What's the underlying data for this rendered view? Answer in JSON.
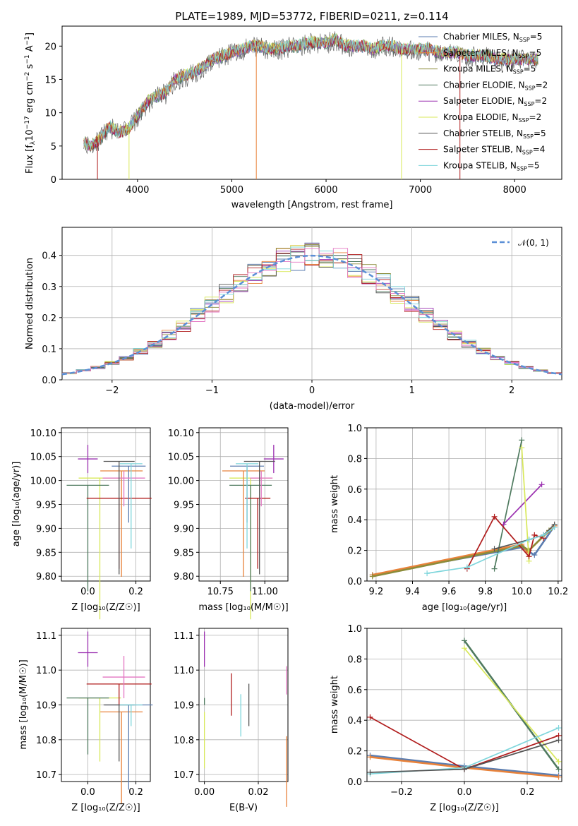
{
  "spectrum": {
    "title": "PLATE=1989, MJD=53772, FIBERID=0211, z=0.114",
    "xlabel": "wavelength [Angstrom, rest frame]",
    "ylabel_base": "Flux [f",
    "ylabel_unit_a": "10",
    "ylabel_exp_a": "−17",
    "ylabel_unit_b": " erg cm",
    "ylabel_exp_b": "−2",
    "ylabel_unit_c": " s",
    "ylabel_exp_c": "−1",
    "ylabel_unit_d": " A",
    "ylabel_exp_d": "−1",
    "ylabel_end": "]",
    "ylabel_sub": "λ",
    "xticks": [
      "4000",
      "5000",
      "6000",
      "7000",
      "8000"
    ],
    "yticks": [
      "0",
      "5",
      "10",
      "15",
      "20"
    ],
    "legend": [
      {
        "name": "Chabrier MILES",
        "n": "5",
        "color": "#5b7db0"
      },
      {
        "name": "Salpeter MILES",
        "n": "5",
        "color": "#e8823a"
      },
      {
        "name": "Kroupa MILES",
        "n": "5",
        "color": "#8c8c3a"
      },
      {
        "name": "Chabrier ELODIE",
        "n": "2",
        "color": "#4f7a5f"
      },
      {
        "name": "Salpeter ELODIE",
        "n": "2",
        "color": "#9b30b0"
      },
      {
        "name": "Kroupa ELODIE",
        "n": "2",
        "color": "#d8e85a"
      },
      {
        "name": "Chabrier STELIB",
        "n": "5",
        "color": "#555555"
      },
      {
        "name": "Salpeter STELIB",
        "n": "4",
        "color": "#b01c1c"
      },
      {
        "name": "Kroupa STELIB",
        "n": "5",
        "color": "#7fd6dc"
      }
    ],
    "nssp_label": "N",
    "nssp_sub": "SSP"
  },
  "residuals": {
    "xlabel": "(data-model)/error",
    "ylabel": "Normed distribution",
    "xticks": [
      "−2",
      "−1",
      "0",
      "1",
      "2"
    ],
    "yticks": [
      "0.0",
      "0.1",
      "0.2",
      "0.3",
      "0.4"
    ],
    "legend": "𝒩(0, 1)"
  },
  "age_z": {
    "ylabel": "age  [log₁₀(age/yr)]",
    "xlabel": "Z [log₁₀(Z/Z☉)]",
    "xticks": [
      "0.0",
      "0.2"
    ],
    "yticks": [
      "9.80",
      "9.85",
      "9.90",
      "9.95",
      "10.00",
      "10.05",
      "10.10"
    ]
  },
  "age_mass": {
    "xlabel": "mass [log₁₀(M/M☉)]",
    "xticks": [
      "10.75",
      "11.00"
    ],
    "yticks": [
      "9.80",
      "9.85",
      "9.90",
      "9.95",
      "10.00",
      "10.05",
      "10.10"
    ]
  },
  "mw_age": {
    "ylabel": "mass weight",
    "xlabel": "age  [log₁₀(age/yr)]",
    "xticks": [
      "9.2",
      "9.4",
      "9.6",
      "9.8",
      "10.0",
      "10.2"
    ],
    "yticks": [
      "0.0",
      "0.2",
      "0.4",
      "0.6",
      "0.8",
      "1.0"
    ]
  },
  "mass_z": {
    "ylabel": "mass [log₁₀(M/M☉)]",
    "xlabel": "Z [log₁₀(Z/Z☉)]",
    "xticks": [
      "0.0",
      "0.2"
    ],
    "yticks": [
      "10.7",
      "10.8",
      "10.9",
      "11.0",
      "11.1"
    ]
  },
  "mass_ebv": {
    "xlabel": "E(B-V)",
    "xticks": [
      "0.00",
      "0.02"
    ],
    "yticks": [
      "10.7",
      "10.8",
      "10.9",
      "11.0",
      "11.1"
    ]
  },
  "mw_z": {
    "ylabel": "mass weight",
    "xlabel": "Z [log₁₀(Z/Z☉)]",
    "xticks": [
      "−0.2",
      "0.0",
      "0.2"
    ],
    "yticks": [
      "0.0",
      "0.2",
      "0.4",
      "0.6",
      "0.8",
      "1.0"
    ]
  },
  "chart_data": [
    {
      "type": "line",
      "title": "PLATE=1989, MJD=53772, FIBERID=0211, z=0.114",
      "xlabel": "wavelength [Angstrom, rest frame]",
      "ylabel": "Flux [fλ 10^-17 erg cm^-2 s^-1 A^-1]",
      "xlim": [
        3200,
        8500
      ],
      "ylim": [
        0,
        23
      ],
      "envelope_x": [
        3430,
        3500,
        3600,
        3700,
        3800,
        3900,
        4000,
        4100,
        4200,
        4300,
        4400,
        4500,
        4600,
        4700,
        4800,
        4900,
        5000,
        5100,
        5200,
        5300,
        5400,
        5500,
        5600,
        5700,
        5800,
        5900,
        6000,
        6100,
        6200,
        6300,
        6400,
        6500,
        6600,
        6700,
        6800,
        6900,
        7000,
        7100,
        7200,
        7300,
        7400,
        7500,
        7600,
        7700,
        7800,
        7900,
        8000,
        8100,
        8250
      ],
      "envelope_y": [
        5.5,
        5.0,
        6.0,
        8.0,
        7.0,
        7.5,
        9.5,
        11.5,
        12.5,
        13.0,
        15.0,
        15.5,
        16.0,
        17.0,
        18.0,
        18.5,
        19.0,
        19.5,
        20.0,
        20.0,
        19.5,
        19.5,
        20.0,
        20.0,
        20.5,
        20.5,
        20.5,
        21.0,
        20.0,
        20.0,
        20.0,
        19.5,
        20.0,
        20.0,
        19.5,
        19.5,
        19.5,
        19.5,
        19.0,
        19.0,
        19.0,
        18.5,
        18.5,
        18.5,
        18.0,
        18.0,
        18.0,
        18.0,
        18.0
      ],
      "series": [
        {
          "name": "Chabrier MILES, N_SSP=5"
        },
        {
          "name": "Salpeter MILES, N_SSP=5"
        },
        {
          "name": "Kroupa MILES, N_SSP=5"
        },
        {
          "name": "Chabrier ELODIE, N_SSP=2"
        },
        {
          "name": "Salpeter ELODIE, N_SSP=2"
        },
        {
          "name": "Kroupa ELODIE, N_SSP=2"
        },
        {
          "name": "Chabrier STELIB, N_SSP=5"
        },
        {
          "name": "Salpeter STELIB, N_SSP=4"
        },
        {
          "name": "Kroupa STELIB, N_SSP=5"
        }
      ]
    },
    {
      "type": "area",
      "xlabel": "(data-model)/error",
      "ylabel": "Normed distribution",
      "xlim": [
        -2.5,
        2.5
      ],
      "ylim": [
        0,
        0.49
      ],
      "bins": 35,
      "reference_curve": "N(0,1)",
      "grid": true,
      "legend": "top-right"
    },
    {
      "type": "scatter",
      "panel": "age vs Z",
      "xlim": [
        -0.11,
        0.26
      ],
      "ylim": [
        9.79,
        10.11
      ],
      "points": [
        {
          "x": 0.0,
          "y": 10.045,
          "color": "#9b30b0"
        },
        {
          "x": 0.05,
          "y": 10.005,
          "color": "#d8e85a"
        },
        {
          "x": 0.0,
          "y": 9.99,
          "color": "#4f7a5f"
        },
        {
          "x": 0.14,
          "y": 10.02,
          "color": "#e8823a"
        },
        {
          "x": 0.13,
          "y": 9.963,
          "color": "#b01c1c"
        },
        {
          "x": 0.17,
          "y": 10.03,
          "color": "#5b7db0"
        },
        {
          "x": 0.15,
          "y": 10.005,
          "color": "#e377c2"
        },
        {
          "x": 0.13,
          "y": 10.04,
          "color": "#555555"
        },
        {
          "x": 0.18,
          "y": 10.035,
          "color": "#7fd6dc"
        }
      ]
    },
    {
      "type": "scatter",
      "panel": "age vs mass",
      "xlim": [
        10.63,
        11.13
      ],
      "ylim": [
        9.79,
        10.11
      ],
      "points": [
        {
          "x": 11.05,
          "y": 10.045,
          "color": "#9b30b0"
        },
        {
          "x": 10.92,
          "y": 10.005,
          "color": "#d8e85a"
        },
        {
          "x": 10.92,
          "y": 9.99,
          "color": "#4f7a5f"
        },
        {
          "x": 10.88,
          "y": 10.02,
          "color": "#e8823a"
        },
        {
          "x": 10.96,
          "y": 9.963,
          "color": "#b01c1c"
        },
        {
          "x": 10.9,
          "y": 10.03,
          "color": "#5b7db0"
        },
        {
          "x": 10.98,
          "y": 10.005,
          "color": "#e377c2"
        },
        {
          "x": 10.97,
          "y": 10.04,
          "color": "#555555"
        },
        {
          "x": 10.9,
          "y": 10.035,
          "color": "#7fd6dc"
        }
      ]
    },
    {
      "type": "line",
      "panel": "mass weight vs age",
      "xlabel": "age [log10(age/yr)]",
      "ylabel": "mass weight",
      "xlim": [
        9.15,
        10.22
      ],
      "ylim": [
        0,
        1
      ],
      "series": [
        {
          "color": "#5b7db0",
          "x": [
            9.18,
            10.0,
            10.07,
            10.18
          ],
          "y": [
            0.04,
            0.22,
            0.17,
            0.36
          ]
        },
        {
          "color": "#e8823a",
          "x": [
            9.18,
            10.0,
            10.03,
            10.18
          ],
          "y": [
            0.04,
            0.24,
            0.19,
            0.36
          ]
        },
        {
          "color": "#8c8c3a",
          "x": [
            9.18,
            10.0,
            10.04,
            10.15
          ],
          "y": [
            0.03,
            0.23,
            0.2,
            0.33
          ]
        },
        {
          "color": "#4f7a5f",
          "x": [
            9.85,
            10.0
          ],
          "y": [
            0.08,
            0.92
          ]
        },
        {
          "color": "#9b30b0",
          "x": [
            9.9,
            10.11
          ],
          "y": [
            0.37,
            0.63
          ]
        },
        {
          "color": "#d8e85a",
          "x": [
            10.0,
            10.04
          ],
          "y": [
            0.87,
            0.13
          ]
        },
        {
          "color": "#555555",
          "x": [
            9.85,
            10.04,
            10.12,
            10.18
          ],
          "y": [
            0.21,
            0.27,
            0.3,
            0.37
          ]
        },
        {
          "color": "#b01c1c",
          "x": [
            9.7,
            9.85,
            10.04,
            10.07,
            10.12
          ],
          "y": [
            0.08,
            0.42,
            0.16,
            0.3,
            0.28
          ]
        },
        {
          "color": "#7fd6dc",
          "x": [
            9.48,
            9.7,
            10.04,
            10.12,
            10.18
          ],
          "y": [
            0.05,
            0.09,
            0.27,
            0.3,
            0.35
          ]
        }
      ]
    },
    {
      "type": "scatter",
      "panel": "mass vs Z",
      "xlim": [
        -0.11,
        0.26
      ],
      "ylim": [
        10.68,
        11.12
      ],
      "points": [
        {
          "x": 0.0,
          "y": 11.05,
          "color": "#9b30b0"
        },
        {
          "x": 0.05,
          "y": 10.92,
          "color": "#d8e85a"
        },
        {
          "x": 0.0,
          "y": 10.92,
          "color": "#4f7a5f"
        },
        {
          "x": 0.14,
          "y": 10.88,
          "color": "#e8823a"
        },
        {
          "x": 0.13,
          "y": 10.96,
          "color": "#b01c1c"
        },
        {
          "x": 0.17,
          "y": 10.9,
          "color": "#5b7db0"
        },
        {
          "x": 0.15,
          "y": 10.98,
          "color": "#e377c2"
        },
        {
          "x": 0.13,
          "y": 10.9,
          "color": "#555555"
        },
        {
          "x": 0.18,
          "y": 10.9,
          "color": "#7fd6dc"
        }
      ]
    },
    {
      "type": "scatter",
      "panel": "mass vs E(B-V)",
      "xlim": [
        -0.002,
        0.031
      ],
      "ylim": [
        10.68,
        11.12
      ],
      "points": [
        {
          "x": 0.0,
          "y": 11.05,
          "color": "#9b30b0"
        },
        {
          "x": 0.0,
          "y": 10.88,
          "color": "#d8e85a"
        },
        {
          "x": 0.0,
          "y": 10.92,
          "color": "#4f7a5f"
        },
        {
          "x": 0.01,
          "y": 10.93,
          "color": "#b01c1c"
        },
        {
          "x": 0.0135,
          "y": 10.87,
          "color": "#7fd6dc"
        },
        {
          "x": 0.0165,
          "y": 10.9,
          "color": "#555555"
        },
        {
          "x": 0.0305,
          "y": 10.93,
          "color": "#e377c2"
        },
        {
          "x": 0.0305,
          "y": 10.81,
          "color": "#e8823a"
        }
      ]
    },
    {
      "type": "line",
      "panel": "mass weight vs Z",
      "xlabel": "Z [log10(Z/Zsun)]",
      "ylabel": "mass weight",
      "xlim": [
        -0.31,
        0.31
      ],
      "ylim": [
        0,
        1
      ],
      "series": [
        {
          "color": "#5b7db0",
          "x": [
            -0.3,
            0.0,
            0.3
          ],
          "y": [
            0.17,
            0.1,
            0.04
          ]
        },
        {
          "color": "#e8823a",
          "x": [
            -0.3,
            0.0,
            0.3
          ],
          "y": [
            0.16,
            0.09,
            0.03
          ]
        },
        {
          "color": "#4f7a5f",
          "x": [
            0.0,
            0.3
          ],
          "y": [
            0.92,
            0.08
          ]
        },
        {
          "color": "#d8e85a",
          "x": [
            0.0,
            0.3
          ],
          "y": [
            0.87,
            0.13
          ]
        },
        {
          "color": "#b01c1c",
          "x": [
            -0.3,
            0.0,
            0.3
          ],
          "y": [
            0.42,
            0.08,
            0.3
          ]
        },
        {
          "color": "#7fd6dc",
          "x": [
            -0.3,
            0.0,
            0.3
          ],
          "y": [
            0.05,
            0.09,
            0.35
          ]
        },
        {
          "color": "#555555",
          "x": [
            -0.3,
            0.0,
            0.3
          ],
          "y": [
            0.06,
            0.08,
            0.27
          ]
        }
      ]
    }
  ]
}
